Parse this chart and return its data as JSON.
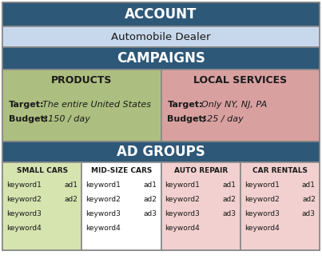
{
  "title_account": "ACCOUNT",
  "subtitle_account": "Automobile Dealer",
  "title_campaigns": "CAMPAIGNS",
  "title_ad_groups": "AD GROUPS",
  "campaign1_title": "PRODUCTS",
  "campaign1_target_label": "Target:",
  "campaign1_target_val": "The entire United States",
  "campaign1_budget_label": "Budget:",
  "campaign1_budget_val": "$150 / day",
  "campaign2_title": "LOCAL SERVICES",
  "campaign2_target_label": "Target:",
  "campaign2_target_val": "Only NY, NJ, PA",
  "campaign2_budget_label": "Budget:",
  "campaign2_budget_val": "$25 / day",
  "ad_groups": [
    "SMALL CARS",
    "MID-SIZE CARS",
    "AUTO REPAIR",
    "CAR RENTALS"
  ],
  "ad_group_colors": [
    "#D6E4B0",
    "#FFFFFF",
    "#F2D0D0",
    "#F2D0D0"
  ],
  "keywords": [
    [
      "keyword1",
      "ad1",
      "keyword2",
      "ad2",
      "keyword3",
      "",
      "keyword4",
      ""
    ],
    [
      "keyword1",
      "ad1",
      "keyword2",
      "ad2",
      "keyword3",
      "ad3",
      "keyword4",
      ""
    ],
    [
      "keyword1",
      "ad1",
      "keyword2",
      "ad2",
      "keyword3",
      "ad3",
      "keyword4",
      ""
    ],
    [
      "keyword1",
      "ad1",
      "keyword2",
      "ad2",
      "keyword3",
      "ad3",
      "keyword4",
      ""
    ]
  ],
  "color_header": "#2E5878",
  "color_account_sub": "#C8D8EC",
  "color_campaign1": "#ADBF80",
  "color_campaign2": "#D9A0A0",
  "color_white": "#FFFFFF",
  "color_header_text": "#FFFFFF",
  "color_dark_text": "#1a1a1a",
  "border_color": "#888888",
  "fig_w": 4.03,
  "fig_h": 3.44,
  "dpi": 100
}
